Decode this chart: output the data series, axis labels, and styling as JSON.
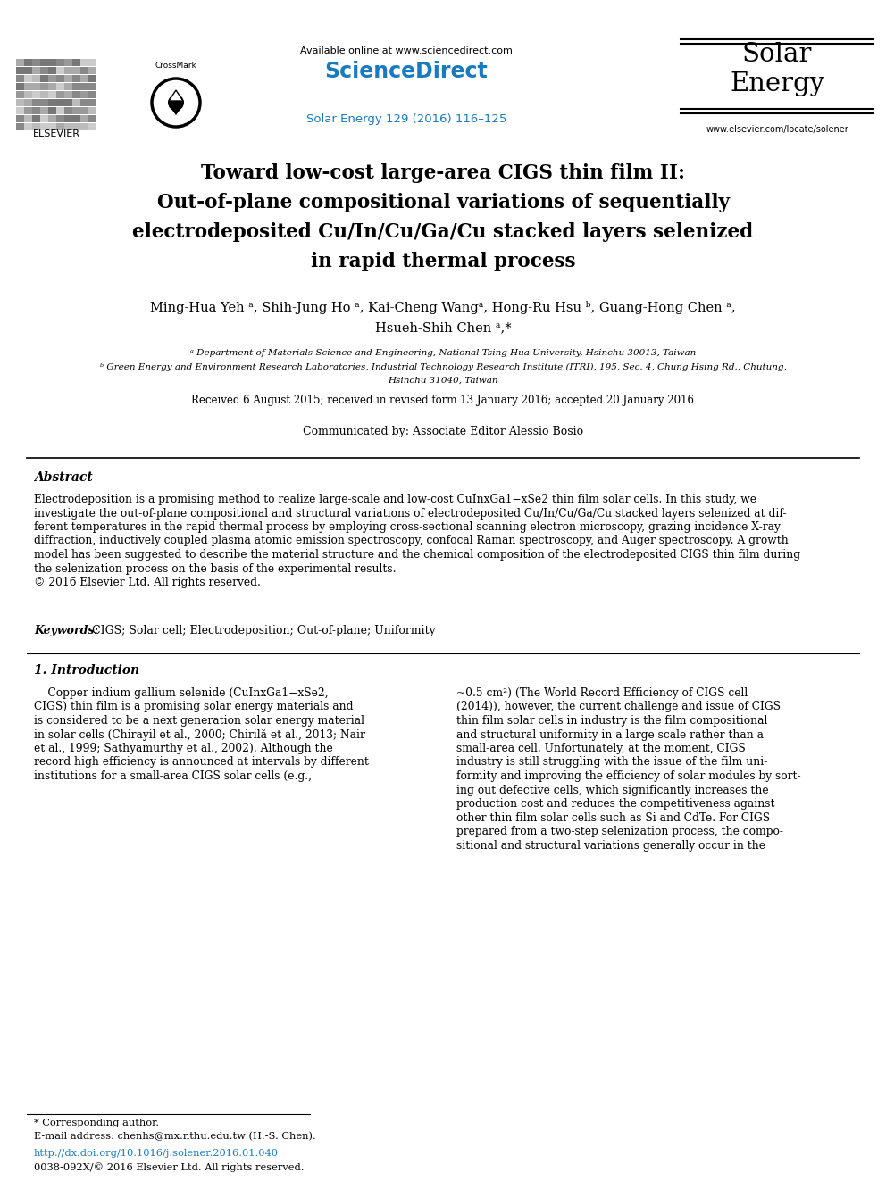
{
  "bg_color": "#ffffff",
  "header": {
    "available_online": "Available online at www.sciencedirect.com",
    "sciencedirect": "ScienceDirect",
    "journal_ref": "Solar Energy 129 (2016) 116–125",
    "journal_name_line1": "Solar",
    "journal_name_line2": "Energy",
    "website": "www.elsevier.com/locate/solener",
    "elsevier_text": "ELSEVIER"
  },
  "title_lines": [
    "Toward low-cost large-area CIGS thin film II:",
    "Out-of-plane compositional variations of sequentially",
    "electrodeposited Cu/In/Cu/Ga/Cu stacked layers selenized",
    "in rapid thermal process"
  ],
  "authors": "Ming-Hua Yeh ᵃ, Shih-Jung Ho ᵃ, Kai-Cheng Wangᵃ, Hong-Ru Hsu ᵇ, Guang-Hong Chen ᵃ,",
  "authors2": "Hsueh-Shih Chen ᵃ,*",
  "affil_a": "ᵃ Department of Materials Science and Engineering, National Tsing Hua University, Hsinchu 30013, Taiwan",
  "affil_b": "ᵇ Green Energy and Environment Research Laboratories, Industrial Technology Research Institute (ITRI), 195, Sec. 4, Chung Hsing Rd., Chutung,",
  "affil_b2": "Hsinchu 31040, Taiwan",
  "received": "Received 6 August 2015; received in revised form 13 January 2016; accepted 20 January 2016",
  "communicated": "Communicated by: Associate Editor Alessio Bosio",
  "abstract_title": "Abstract",
  "abstract_text": "Electrodeposition is a promising method to realize large-scale and low-cost CuInxGa1−xSe2 thin film solar cells. In this study, we\ninvestigate the out-of-plane compositional and structural variations of electrodeposited Cu/In/Cu/Ga/Cu stacked layers selenized at dif-\nferent temperatures in the rapid thermal process by employing cross-sectional scanning electron microscopy, grazing incidence X-ray\ndiffraction, inductively coupled plasma atomic emission spectroscopy, confocal Raman spectroscopy, and Auger spectroscopy. A growth\nmodel has been suggested to describe the material structure and the chemical composition of the electrodeposited CIGS thin film during\nthe selenization process on the basis of the experimental results.\n© 2016 Elsevier Ltd. All rights reserved.",
  "keywords_label": "Keywords:",
  "keywords_text": "  CIGS; Solar cell; Electrodeposition; Out-of-plane; Uniformity",
  "intro_title": "1. Introduction",
  "intro_col1": [
    "    Copper indium gallium selenide (CuInxGa1−xSe2,",
    "CIGS) thin film is a promising solar energy materials and",
    "is considered to be a next generation solar energy material",
    "in solar cells (Chirayil et al., 2000; Chirilă et al., 2013; Nair",
    "et al., 1999; Sathyamurthy et al., 2002). Although the",
    "record high efficiency is announced at intervals by different",
    "institutions for a small-area CIGS solar cells (e.g.,"
  ],
  "intro_col2": [
    "~0.5 cm²) (The World Record Efficiency of CIGS cell",
    "(2014)), however, the current challenge and issue of CIGS",
    "thin film solar cells in industry is the film compositional",
    "and structural uniformity in a large scale rather than a",
    "small-area cell. Unfortunately, at the moment, CIGS",
    "industry is still struggling with the issue of the film uni-",
    "formity and improving the efficiency of solar modules by sort-",
    "ing out defective cells, which significantly increases the",
    "production cost and reduces the competitiveness against",
    "other thin film solar cells such as Si and CdTe. For CIGS",
    "prepared from a two-step selenization process, the compo-",
    "sitional and structural variations generally occur in the"
  ],
  "footnote_star": "* Corresponding author.",
  "footnote_email": "E-mail address: chenhs@mx.nthu.edu.tw (H.-S. Chen).",
  "footnote_doi": "http://dx.doi.org/10.1016/j.solener.2016.01.040",
  "footnote_issn": "0038-092X/© 2016 Elsevier Ltd. All rights reserved.",
  "colors": {
    "sciencedirect_blue": "#1a7abf",
    "text_black": "#000000",
    "link_blue": "#1a7abf"
  }
}
